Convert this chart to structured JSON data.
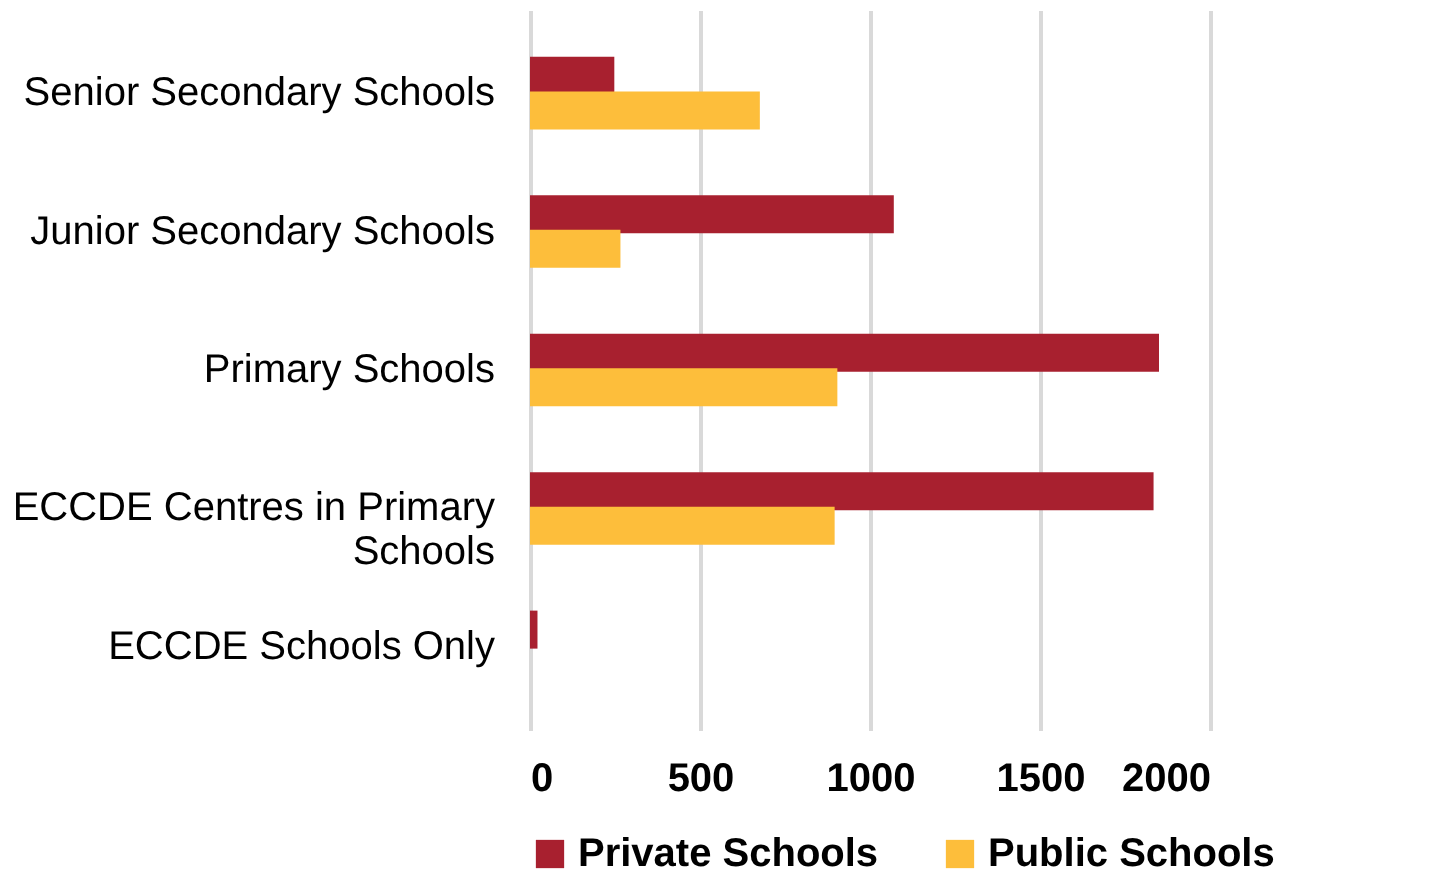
{
  "chart_data": {
    "type": "bar",
    "orientation": "horizontal",
    "categories": [
      "Senior Secondary Schools",
      "Junior Secondary Schools",
      "Primary Schools",
      "ECCDE Centres in Primary Schools",
      "ECCDE Schools Only"
    ],
    "series": [
      {
        "name": "Private Schools",
        "color": "#a8202f",
        "values": [
          248,
          1070,
          1850,
          1834,
          22
        ]
      },
      {
        "name": "Public Schools",
        "color": "#fdbe3b",
        "values": [
          676,
          266,
          904,
          896,
          0
        ]
      }
    ],
    "xlim": [
      0,
      2000
    ],
    "xticks": [
      0,
      500,
      1000,
      1500,
      2000
    ],
    "grid": "x",
    "legend": "bottom"
  }
}
